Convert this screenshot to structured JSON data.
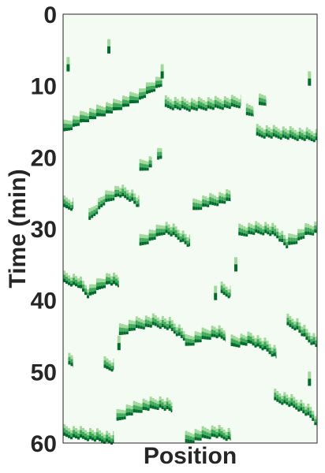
{
  "chart_data": {
    "type": "heatmap",
    "title": "",
    "xlabel": "Position",
    "ylabel": "Time (min)",
    "y_ticks": [
      "0",
      "10",
      "20",
      "30",
      "40",
      "50",
      "60"
    ],
    "ylim": [
      0,
      60
    ],
    "y_inverted": true,
    "x_range": [
      0,
      1
    ],
    "colormap": "Greens",
    "colors": {
      "background": "#f4fbf2",
      "light": "#a1d99b",
      "mid": "#41ab5d",
      "dark": "#006d2c",
      "frame": "#262626"
    },
    "traces": [
      {
        "x": [
          0.0,
          0.08,
          0.2,
          0.3,
          0.35,
          0.39
        ],
        "t": [
          16.5,
          15.0,
          13.5,
          12.0,
          10.7,
          9.8
        ]
      },
      {
        "x": [
          0.4,
          0.5,
          0.65,
          0.7
        ],
        "t": [
          13.0,
          13.3,
          13.0,
          12.8
        ]
      },
      {
        "x": [
          0.72,
          0.75
        ],
        "t": [
          14.2,
          14.0
        ]
      },
      {
        "x": [
          0.77,
          0.8
        ],
        "t": [
          12.8,
          12.5
        ]
      },
      {
        "x": [
          0.76,
          0.85,
          1.0
        ],
        "t": [
          17.0,
          17.2,
          17.6
        ]
      },
      {
        "x": [
          0.3,
          0.35
        ],
        "t": [
          22.0,
          21.3
        ]
      },
      {
        "x": [
          0.37,
          0.39
        ],
        "t": [
          20.5,
          20.0
        ]
      },
      {
        "x": [
          0.0,
          0.04
        ],
        "t": [
          27.0,
          27.2
        ]
      },
      {
        "x": [
          0.1,
          0.16,
          0.22,
          0.27,
          0.3
        ],
        "t": [
          29.0,
          26.5,
          25.3,
          26.0,
          27.0
        ]
      },
      {
        "x": [
          0.51,
          0.56,
          0.61,
          0.66
        ],
        "t": [
          27.5,
          26.8,
          26.5,
          26.0
        ]
      },
      {
        "x": [
          0.3,
          0.35,
          0.4,
          0.44,
          0.48,
          0.5
        ],
        "t": [
          32.5,
          31.5,
          30.5,
          31.0,
          32.0,
          32.5
        ]
      },
      {
        "x": [
          0.69,
          0.75,
          0.8,
          0.84,
          0.88,
          0.92,
          0.96,
          1.0
        ],
        "t": [
          31.0,
          30.6,
          30.6,
          31.0,
          32.5,
          31.8,
          30.8,
          30.5
        ]
      },
      {
        "x": [
          0.0,
          0.06,
          0.1,
          0.14,
          0.18,
          0.22
        ],
        "t": [
          37.5,
          38.0,
          39.5,
          38.5,
          37.6,
          38.0
        ]
      },
      {
        "x": [
          0.62,
          0.66
        ],
        "t": [
          39.0,
          39.5
        ]
      },
      {
        "x": [
          0.22,
          0.28,
          0.36,
          0.42,
          0.48
        ],
        "t": [
          45.0,
          44.0,
          43.5,
          44.0,
          45.5
        ]
      },
      {
        "x": [
          0.48,
          0.55,
          0.6,
          0.64
        ],
        "t": [
          46.5,
          45.5,
          45.0,
          45.5
        ]
      },
      {
        "x": [
          0.66,
          0.74,
          0.8,
          0.84
        ],
        "t": [
          46.5,
          46.0,
          47.0,
          48.0
        ]
      },
      {
        "x": [
          0.88,
          0.92,
          0.96,
          1.0
        ],
        "t": [
          43.5,
          44.0,
          45.5,
          46.5
        ]
      },
      {
        "x": [
          0.02,
          0.04
        ],
        "t": [
          49.0,
          49.2
        ]
      },
      {
        "x": [
          0.16,
          0.2
        ],
        "t": [
          49.5,
          49.7
        ]
      },
      {
        "x": [
          0.21,
          0.26,
          0.32,
          0.38,
          0.43
        ],
        "t": [
          57.0,
          56.0,
          55.3,
          55.0,
          55.5
        ]
      },
      {
        "x": [
          0.83,
          0.88,
          0.93,
          0.98,
          1.0
        ],
        "t": [
          54.0,
          54.5,
          55.3,
          56.5,
          57.5
        ]
      },
      {
        "x": [
          0.0,
          0.05,
          0.12,
          0.2
        ],
        "t": [
          59.0,
          59.2,
          59.5,
          60.0
        ]
      },
      {
        "x": [
          0.48,
          0.55,
          0.6,
          0.66
        ],
        "t": [
          60.0,
          59.3,
          59.0,
          59.5
        ]
      }
    ],
    "spots": [
      {
        "x": 0.02,
        "t": 7.0
      },
      {
        "x": 0.18,
        "t": 4.5
      },
      {
        "x": 0.39,
        "t": 8.0
      },
      {
        "x": 0.97,
        "t": 9.0
      },
      {
        "x": 0.68,
        "t": 35.0
      },
      {
        "x": 0.6,
        "t": 39.0
      },
      {
        "x": 0.22,
        "t": 46.0
      },
      {
        "x": 0.97,
        "t": 51.0
      }
    ]
  }
}
